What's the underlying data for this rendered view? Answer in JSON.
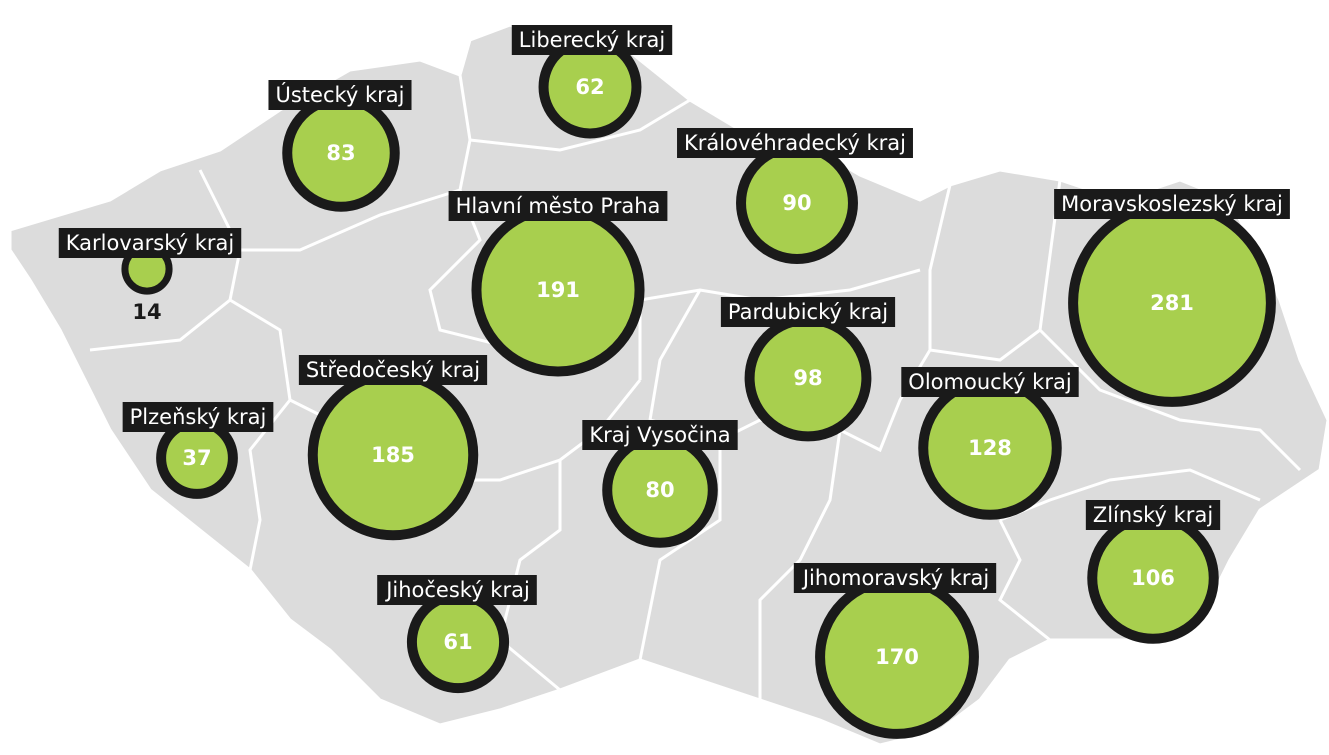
{
  "regions": [
    {
      "name": "Liberecký kraj",
      "value": 62
    },
    {
      "name": "Ústecký kraj",
      "value": 83
    },
    {
      "name": "Královéhradecký kraj",
      "value": 90
    },
    {
      "name": "Hlavní město Praha",
      "value": 191
    },
    {
      "name": "Karlovarský kraj",
      "value": 14
    },
    {
      "name": "Moravskoslezský kraj",
      "value": 281
    },
    {
      "name": "Pardubický kraj",
      "value": 98
    },
    {
      "name": "Středočeský kraj",
      "value": 185
    },
    {
      "name": "Plzeňský kraj",
      "value": 37
    },
    {
      "name": "Olomoucký kraj",
      "value": 128
    },
    {
      "name": "Kraj Vysočina",
      "value": 80
    },
    {
      "name": "Zlínský kraj",
      "value": 106
    },
    {
      "name": "Jihočeský kraj",
      "value": 61
    },
    {
      "name": "Jihomoravský kraj",
      "value": 170
    }
  ]
}
